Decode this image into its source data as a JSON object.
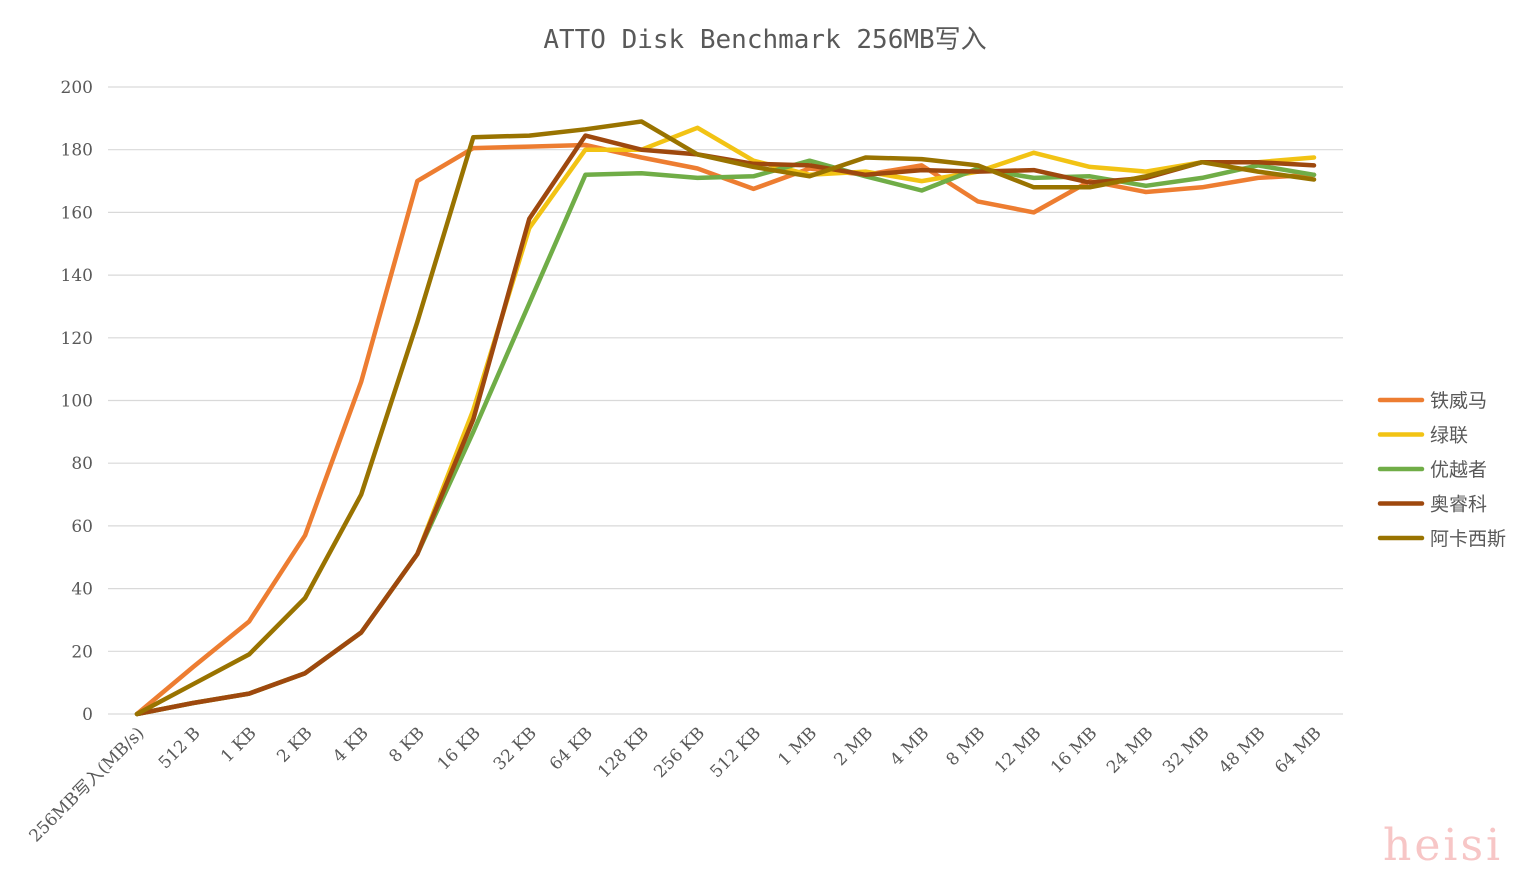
{
  "chart_data": {
    "type": "line",
    "title": "ATTO Disk Benchmark 256MB写入",
    "xlabel": "",
    "ylabel": "",
    "ylim": [
      0,
      200
    ],
    "yticks": [
      0,
      20,
      40,
      60,
      80,
      100,
      120,
      140,
      160,
      180,
      200
    ],
    "grid": true,
    "legend_position": "right",
    "categories": [
      "256MB写入(MB/s)",
      "512 B",
      "1 KB",
      "2 KB",
      "4 KB",
      "8 KB",
      "16 KB",
      "32 KB",
      "64 KB",
      "128 KB",
      "256 KB",
      "512 KB",
      "1 MB",
      "2 MB",
      "4 MB",
      "8 MB",
      "12 MB",
      "16 MB",
      "24 MB",
      "32 MB",
      "48 MB",
      "64 MB"
    ],
    "series": [
      {
        "name": "铁威马",
        "color": "#ED7D31",
        "values": [
          0,
          15,
          29.5,
          57,
          106,
          170,
          180.5,
          181,
          181.5,
          177.5,
          174,
          167.5,
          174,
          172,
          175,
          163.5,
          160,
          170,
          166.5,
          168,
          171,
          172
        ]
      },
      {
        "name": "绿联",
        "color": "#F2C314",
        "values": [
          0,
          3.5,
          6.5,
          13,
          26,
          51,
          97,
          155,
          180,
          180,
          187,
          176.5,
          172,
          173,
          170,
          173,
          179,
          174.5,
          173,
          176,
          176,
          177.5
        ]
      },
      {
        "name": "优越者",
        "color": "#70AD47",
        "values": [
          0,
          3.5,
          6.5,
          13,
          26,
          51,
          90,
          131,
          172,
          172.5,
          171,
          171.5,
          176.5,
          171.5,
          167,
          174,
          171,
          171.5,
          168.5,
          171,
          175,
          172
        ]
      },
      {
        "name": "奥睿科",
        "color": "#9E480E",
        "values": [
          0,
          3.5,
          6.5,
          13,
          26,
          51,
          94,
          158,
          184.5,
          180,
          178.5,
          175.5,
          175,
          172,
          173.5,
          173,
          173.5,
          169.5,
          171,
          176,
          176,
          175
        ]
      },
      {
        "name": "阿卡西斯",
        "color": "#997300",
        "values": [
          0,
          9.5,
          19,
          37,
          70,
          125,
          184,
          184.5,
          186.5,
          189,
          178.5,
          174.5,
          171.5,
          177.5,
          177,
          175,
          168,
          168,
          171.5,
          176,
          173,
          170.5
        ]
      }
    ]
  },
  "watermark": "heisi"
}
